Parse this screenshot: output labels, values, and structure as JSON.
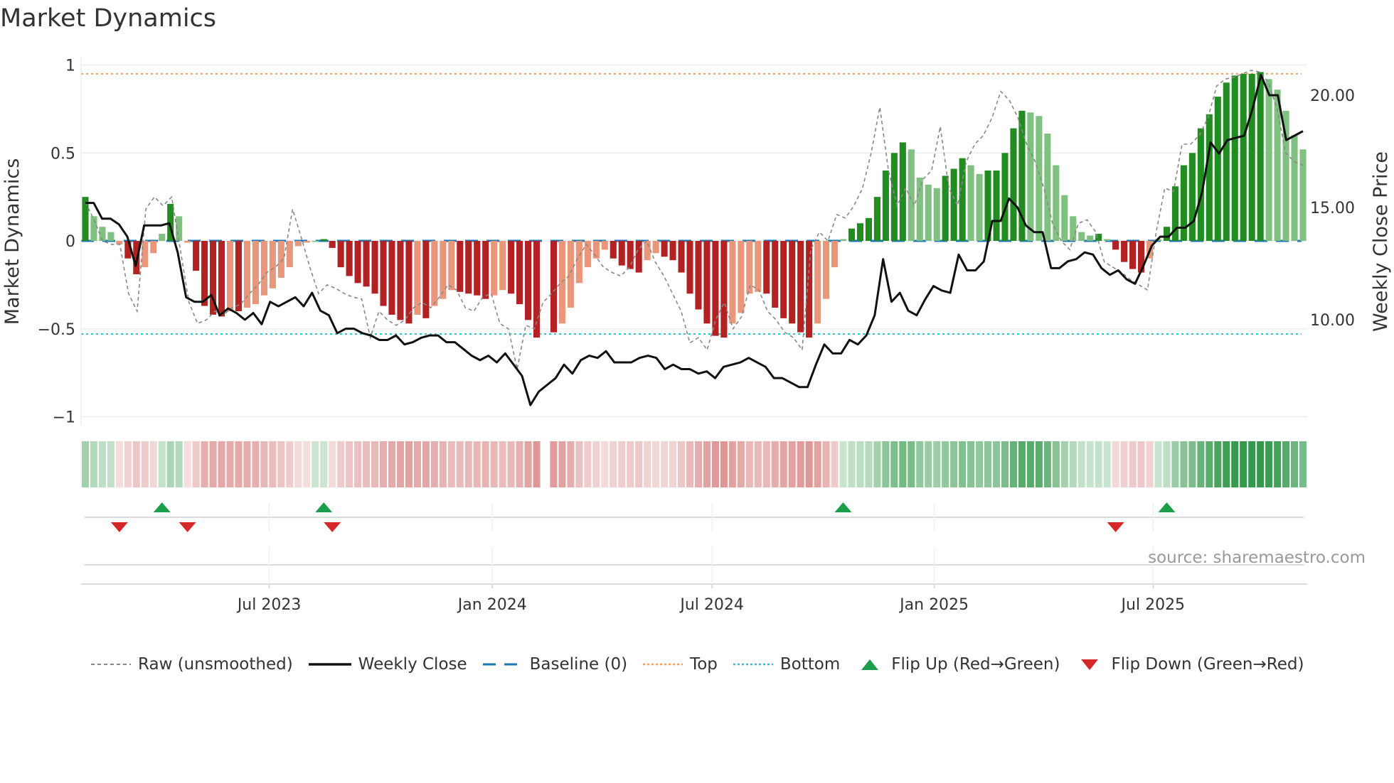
{
  "title": "Market Dynamics",
  "source": "source: sharemaestro.com",
  "legend": {
    "raw": "Raw (unsmoothed)",
    "close": "Weekly Close",
    "baseline": "Baseline (0)",
    "top": "Top",
    "bottom": "Bottom",
    "flip_up": "Flip Up (Red→Green)",
    "flip_down": "Flip Down (Green→Red)"
  },
  "colors": {
    "green_dark": "#228b22",
    "green_light": "#80c080",
    "red_dark": "#b22222",
    "red_light": "#e9967a",
    "close": "#111111",
    "raw": "#888888",
    "baseline": "#1f77b4",
    "top": "#f0a060",
    "bottom": "#22c4d4",
    "flip_up": "#1a9e4a",
    "flip_down": "#d62728"
  },
  "chart_data": {
    "type": "bar",
    "title": "Market Dynamics",
    "ylabel": "Market Dynamics",
    "y2label": "Weekly Close Price",
    "ylim": [
      -1,
      1
    ],
    "y2lim": [
      5.2,
      21.3
    ],
    "yticks": [
      {
        "v": 1,
        "label": "1"
      },
      {
        "v": 0.5,
        "label": "0.5"
      },
      {
        "v": 0,
        "label": "0"
      },
      {
        "v": -0.5,
        "label": "−0.5"
      },
      {
        "v": -1,
        "label": "−1"
      }
    ],
    "y2ticks": [
      {
        "v": 20,
        "label": "20.00"
      },
      {
        "v": 15,
        "label": "15.00"
      },
      {
        "v": 10,
        "label": "10.00"
      }
    ],
    "xticks": [
      {
        "week": 21.6,
        "label": "Jul 2023"
      },
      {
        "week": 47.8,
        "label": "Jan 2024"
      },
      {
        "week": 73.6,
        "label": "Jul 2024"
      },
      {
        "week": 99.7,
        "label": "Jan 2025"
      },
      {
        "week": 125.4,
        "label": "Jul 2025"
      }
    ],
    "top_level": 0.95,
    "bottom_level": -0.53,
    "baseline": 0,
    "smoothed": [
      0.25,
      0.14,
      0.08,
      0.05,
      -0.02,
      -0.1,
      -0.19,
      -0.15,
      -0.07,
      0.04,
      0.21,
      0.14,
      -0.01,
      -0.17,
      -0.37,
      -0.42,
      -0.43,
      -0.4,
      -0.4,
      -0.38,
      -0.36,
      -0.31,
      -0.27,
      -0.21,
      -0.15,
      -0.03,
      -0.01,
      0.0,
      0.01,
      -0.04,
      -0.15,
      -0.2,
      -0.24,
      -0.26,
      -0.3,
      -0.37,
      -0.42,
      -0.45,
      -0.47,
      -0.42,
      -0.44,
      -0.37,
      -0.33,
      -0.28,
      -0.29,
      -0.3,
      -0.31,
      -0.33,
      -0.31,
      -0.28,
      -0.3,
      -0.36,
      -0.45,
      -0.55,
      null,
      -0.52,
      -0.47,
      -0.38,
      -0.24,
      -0.15,
      -0.1,
      -0.05,
      -0.1,
      -0.14,
      -0.16,
      -0.18,
      -0.11,
      -0.07,
      -0.09,
      -0.11,
      -0.18,
      -0.3,
      -0.39,
      -0.47,
      -0.54,
      -0.55,
      -0.47,
      -0.41,
      -0.3,
      -0.29,
      -0.3,
      -0.38,
      -0.44,
      -0.47,
      -0.52,
      -0.55,
      -0.47,
      -0.33,
      -0.15,
      0.01,
      0.07,
      0.1,
      0.13,
      0.25,
      0.4,
      0.5,
      0.56,
      0.52,
      0.36,
      0.32,
      0.3,
      0.37,
      0.41,
      0.47,
      0.43,
      0.38,
      0.4,
      0.4,
      0.5,
      0.64,
      0.74,
      0.73,
      0.71,
      0.61,
      0.43,
      0.26,
      0.14,
      0.05,
      0.03,
      0.04,
      0.01,
      -0.05,
      -0.12,
      -0.16,
      -0.18,
      -0.1,
      0.01,
      0.08,
      0.31,
      0.43,
      0.5,
      0.64,
      0.72,
      0.82,
      0.9,
      0.94,
      0.95,
      0.95,
      0.96,
      0.92,
      0.86,
      0.74,
      0.6,
      0.52
    ],
    "raw": [
      0.22,
      0.12,
      0.0,
      -0.02,
      -0.02,
      -0.3,
      -0.4,
      0.18,
      0.25,
      0.2,
      0.25,
      -0.05,
      -0.35,
      -0.47,
      -0.45,
      -0.4,
      -0.42,
      -0.38,
      -0.36,
      -0.3,
      -0.25,
      -0.18,
      -0.15,
      -0.1,
      0.18,
      0.02,
      -0.15,
      -0.3,
      -0.25,
      -0.27,
      -0.3,
      -0.32,
      -0.33,
      -0.55,
      -0.4,
      -0.45,
      -0.48,
      -0.45,
      -0.38,
      -0.35,
      -0.38,
      -0.32,
      -0.25,
      -0.28,
      -0.38,
      -0.4,
      -0.32,
      -0.3,
      -0.47,
      -0.5,
      -0.73,
      -0.48,
      -0.5,
      -0.35,
      -0.3,
      -0.24,
      -0.2,
      -0.1,
      -0.02,
      -0.08,
      -0.15,
      -0.18,
      -0.2,
      -0.15,
      -0.05,
      0.0,
      -0.12,
      -0.2,
      -0.3,
      -0.4,
      -0.58,
      -0.55,
      -0.62,
      -0.45,
      -0.35,
      -0.5,
      -0.43,
      -0.25,
      -0.28,
      -0.4,
      -0.45,
      -0.52,
      -0.55,
      -0.62,
      -0.05,
      0.05,
      0.0,
      0.15,
      0.13,
      0.2,
      0.3,
      0.5,
      0.76,
      0.4,
      0.2,
      0.3,
      0.2,
      0.35,
      0.4,
      0.65,
      0.3,
      0.2,
      0.45,
      0.55,
      0.6,
      0.7,
      0.85,
      0.8,
      0.7,
      0.55,
      0.45,
      0.3,
      0.1,
      0.0,
      -0.05,
      0.1,
      0.12,
      0.05,
      -0.12,
      -0.15,
      -0.18,
      -0.22,
      -0.25,
      -0.28,
      0.05,
      0.3,
      0.28,
      0.55,
      0.55,
      0.6,
      0.7,
      0.88,
      0.92,
      0.93,
      0.95,
      0.97,
      0.96,
      0.9,
      0.75,
      0.5,
      0.45,
      0.43
    ],
    "close": [
      15.2,
      15.2,
      14.5,
      14.5,
      14.25,
      13.7,
      12.4,
      14.2,
      14.2,
      14.2,
      14.3,
      13.0,
      11.0,
      10.8,
      10.8,
      11.1,
      10.2,
      10.5,
      10.3,
      10.0,
      10.3,
      9.8,
      10.8,
      10.6,
      10.8,
      11.0,
      10.6,
      11.2,
      10.4,
      10.2,
      9.4,
      9.6,
      9.6,
      9.4,
      9.3,
      9.1,
      9.1,
      9.3,
      8.9,
      9.0,
      9.2,
      9.3,
      9.3,
      9.0,
      9.0,
      8.7,
      8.4,
      8.2,
      8.4,
      8.1,
      8.5,
      8.0,
      7.5,
      6.2,
      6.8,
      7.1,
      7.4,
      8.0,
      7.6,
      8.2,
      8.4,
      8.3,
      8.6,
      8.1,
      8.1,
      8.1,
      8.3,
      8.4,
      8.3,
      7.8,
      8.0,
      7.8,
      7.8,
      7.6,
      7.7,
      7.4,
      7.9,
      8.0,
      8.1,
      8.3,
      8.1,
      7.9,
      7.4,
      7.4,
      7.2,
      7.0,
      7.0,
      8.0,
      8.9,
      8.5,
      8.5,
      9.1,
      8.9,
      9.3,
      10.2,
      12.7,
      10.8,
      11.2,
      10.4,
      10.2,
      10.9,
      11.5,
      11.3,
      11.2,
      12.9,
      12.2,
      12.2,
      12.6,
      14.4,
      14.4,
      15.4,
      15.0,
      14.2,
      13.9,
      13.9,
      12.3,
      12.3,
      12.6,
      12.7,
      13.0,
      12.9,
      12.3,
      12.0,
      12.2,
      11.8,
      11.6,
      12.4,
      13.3,
      13.7,
      13.7,
      14.1,
      14.1,
      14.4,
      15.7,
      17.9,
      17.4,
      18.0,
      18.1,
      18.2,
      19.4,
      20.9,
      20.0,
      20.0,
      18.0,
      18.2,
      18.4
    ],
    "flip_up_weeks": [
      9,
      28,
      89,
      127
    ],
    "flip_down_weeks": [
      4,
      12,
      29,
      121
    ],
    "legend_position": "bottom"
  }
}
